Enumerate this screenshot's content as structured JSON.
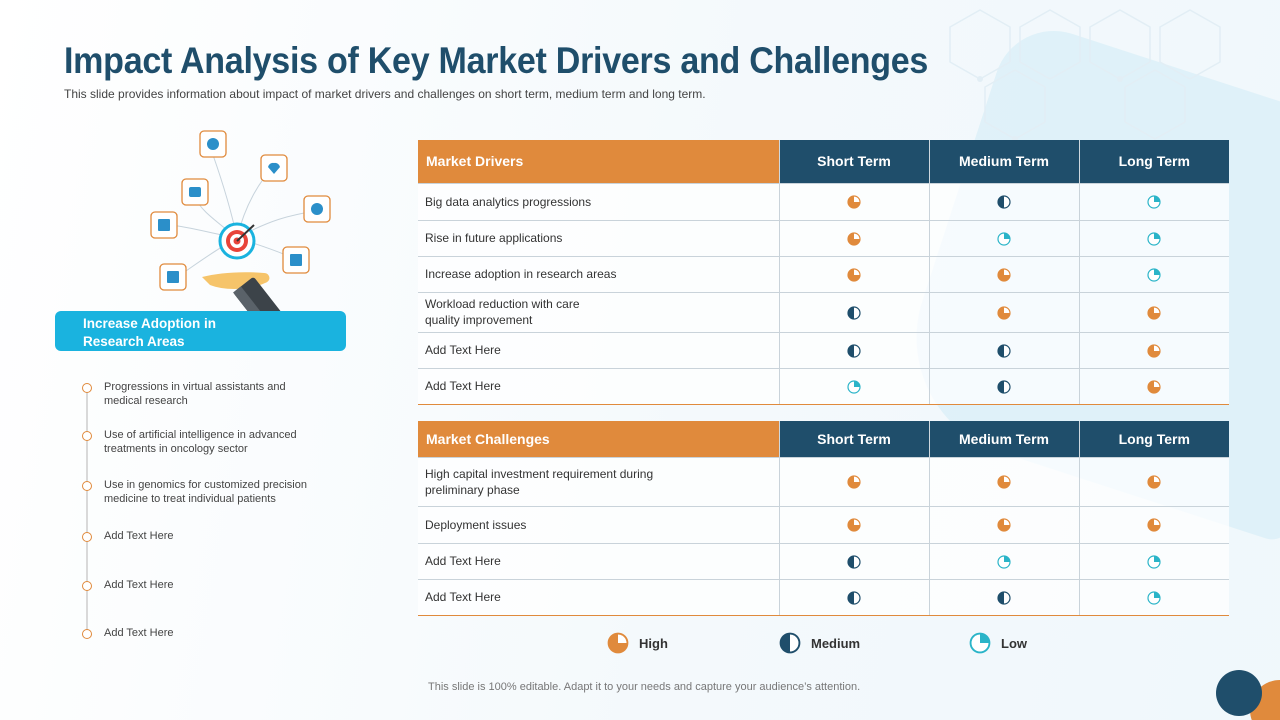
{
  "slide": {
    "title": "Impact Analysis of Key Market Drivers and Challenges",
    "subtitle": "This slide provides information about impact of market drivers and challenges on short term, medium term and long term.",
    "footer": "This slide is 100% editable. Adapt it to your needs and capture your audience’s attention."
  },
  "focus": {
    "banner_line1": "Increase Adoption in",
    "banner_line2": "Research Areas",
    "points": [
      "Progressions in virtual assistants  and medical research",
      "Use of artificial  intelligence in advanced treatments  in oncology sector",
      "Use in genomics for customized precision medicine to treat individual  patients",
      "Add Text Here",
      "Add Text Here",
      "Add Text Here"
    ]
  },
  "drivers_table": {
    "headers": [
      "Market Drivers",
      "Short Term",
      "Medium Term",
      "Long Term"
    ],
    "rows": [
      {
        "label": "Big data analytics progressions",
        "impact": [
          "high",
          "medium",
          "low"
        ]
      },
      {
        "label": "Rise in future applications",
        "impact": [
          "high",
          "low",
          "low"
        ]
      },
      {
        "label": "Increase adoption in research areas",
        "impact": [
          "high",
          "high",
          "low"
        ]
      },
      {
        "label": "Workload reduction with care quality improvement",
        "impact": [
          "medium",
          "high",
          "high"
        ]
      },
      {
        "label": "Add Text Here",
        "impact": [
          "medium",
          "medium",
          "high"
        ]
      },
      {
        "label": "Add Text Here",
        "impact": [
          "low",
          "medium",
          "high"
        ]
      }
    ]
  },
  "challenges_table": {
    "headers": [
      "Market Challenges",
      "Short Term",
      "Medium Term",
      "Long Term"
    ],
    "rows": [
      {
        "label": "High capital investment requirement during preliminary phase",
        "impact": [
          "high",
          "high",
          "high"
        ]
      },
      {
        "label": "Deployment issues",
        "impact": [
          "high",
          "high",
          "high"
        ]
      },
      {
        "label": "Add Text Here",
        "impact": [
          "medium",
          "low",
          "low"
        ]
      },
      {
        "label": "Add Text Here",
        "impact": [
          "medium",
          "medium",
          "low"
        ]
      }
    ]
  },
  "legend": {
    "high_label": "High",
    "medium_label": "Medium",
    "low_label": "Low"
  },
  "colors": {
    "accent_orange": "#e08a3c",
    "navy": "#1f4e6b",
    "cyan": "#1ab3df",
    "low_teal": "#2ab4c8"
  },
  "icons": {
    "high": "three-quarter-pie-icon",
    "medium": "half-pie-icon",
    "low": "quarter-pie-icon"
  }
}
